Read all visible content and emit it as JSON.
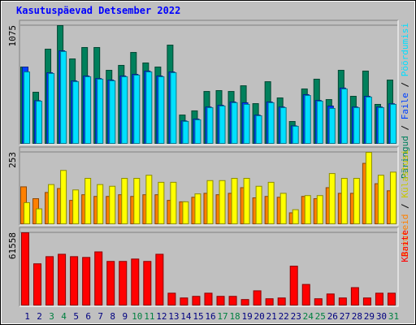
{
  "title": "Kasutuspäevad Detsember 2022",
  "legend_separator": " / ",
  "chart_data": [
    {
      "type": "bar",
      "ylim": [
        0,
        1075
      ],
      "yticks": [
        1075
      ],
      "series": [
        {
          "name": "Päringud",
          "color": "#00805c",
          "values": [
            697,
            467,
            860,
            1075,
            771,
            875,
            875,
            667,
            712,
            830,
            734,
            697,
            897,
            259,
            297,
            474,
            482,
            474,
            526,
            363,
            563,
            415,
            200,
            497,
            586,
            400,
            667,
            430,
            660,
            356,
            578
          ]
        },
        {
          "name": "Faile",
          "color": "#0040ff",
          "values": [
            697,
            390,
            645,
            845,
            570,
            615,
            592,
            578,
            615,
            630,
            660,
            615,
            652,
            205,
            222,
            332,
            348,
            378,
            371,
            258,
            378,
            332,
            160,
            445,
            392,
            341,
            505,
            332,
            430,
            332,
            362
          ]
        },
        {
          "name": "Pöördumisi",
          "color": "#00e0ff",
          "values": [
            652,
            385,
            638,
            838,
            563,
            608,
            586,
            571,
            608,
            623,
            652,
            608,
            645,
            200,
            215,
            326,
            341,
            371,
            356,
            252,
            371,
            326,
            156,
            437,
            385,
            319,
            497,
            326,
            423,
            326,
            356
          ]
        }
      ]
    },
    {
      "type": "bar",
      "ylim": [
        0,
        253
      ],
      "yticks": [
        253
      ],
      "series": [
        {
          "name": "Arvuteid",
          "color": "#ff8000",
          "values": [
            131,
            89,
            111,
            125,
            83,
            103,
            97,
            97,
            103,
            97,
            103,
            103,
            83,
            78,
            94,
            108,
            103,
            108,
            128,
            92,
            97,
            94,
            39,
            97,
            89,
            128,
            108,
            108,
            214,
            142,
            117
          ]
        },
        {
          "name": "Külastusi",
          "color": "#ffff00",
          "values": [
            75,
            53,
            139,
            189,
            120,
            161,
            139,
            133,
            161,
            161,
            172,
            147,
            147,
            78,
            106,
            153,
            153,
            161,
            161,
            133,
            147,
            108,
            50,
            100,
            100,
            178,
            161,
            161,
            253,
            172,
            183
          ]
        }
      ]
    },
    {
      "type": "bar",
      "ylim": [
        0,
        61558
      ],
      "yticks": [
        61558
      ],
      "categories": [
        "1",
        "2",
        "3",
        "4",
        "5",
        "6",
        "7",
        "8",
        "9",
        "10",
        "11",
        "12",
        "13",
        "14",
        "15",
        "16",
        "17",
        "18",
        "19",
        "20",
        "21",
        "22",
        "23",
        "24",
        "25",
        "26",
        "27",
        "28",
        "29",
        "30",
        "31"
      ],
      "category_colors": [
        "#000080",
        "#000080",
        "#008040",
        "#008040",
        "#000080",
        "#000080",
        "#000080",
        "#000080",
        "#000080",
        "#008040",
        "#008040",
        "#000080",
        "#000080",
        "#000080",
        "#000080",
        "#000080",
        "#008040",
        "#008040",
        "#000080",
        "#000080",
        "#000080",
        "#000080",
        "#000080",
        "#008040",
        "#008040",
        "#000080",
        "#000080",
        "#000080",
        "#000080",
        "#000080",
        "#008040"
      ],
      "series": [
        {
          "name": "KBaite",
          "color": "#ff0000",
          "values": [
            61558,
            35150,
            41250,
            43280,
            41250,
            40570,
            45300,
            37180,
            37180,
            39210,
            37180,
            43280,
            10140,
            6080,
            7440,
            10140,
            7440,
            7440,
            4730,
            12170,
            5410,
            6080,
            33130,
            17580,
            5410,
            9470,
            6080,
            14870,
            6080,
            10140,
            10140
          ]
        }
      ]
    }
  ]
}
